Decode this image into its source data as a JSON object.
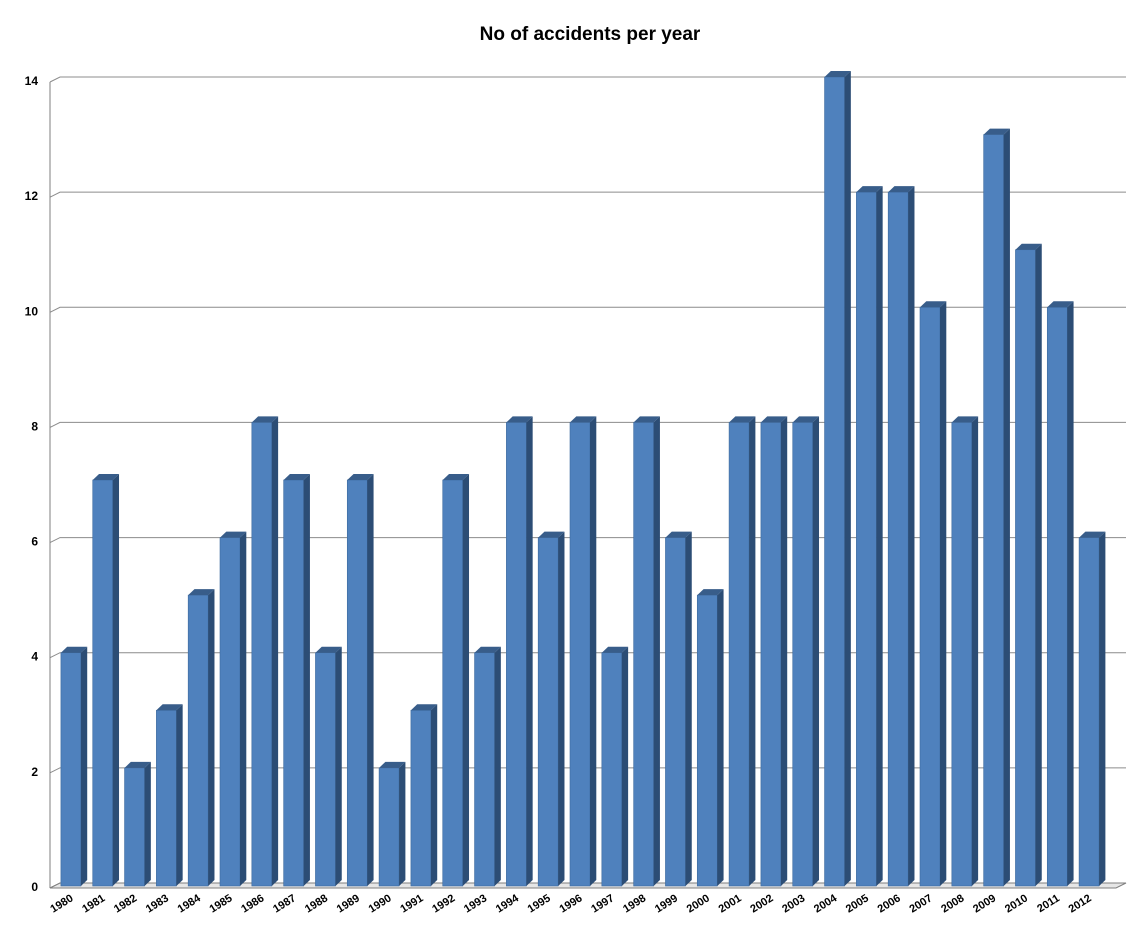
{
  "colors": {
    "bar_front": "#4f81bd",
    "bar_side": "#2c4d75",
    "bar_top": "#385d8a",
    "gridline": "#8c8c8c",
    "wall": "#ffffff",
    "floor": "#e6e6e6"
  },
  "chart_data": {
    "type": "bar",
    "style": "3d-column",
    "title": "No of accidents per year",
    "xlabel": "",
    "ylabel": "",
    "ylim": [
      0,
      14
    ],
    "yticks": [
      0,
      2,
      4,
      6,
      8,
      10,
      12,
      14
    ],
    "grid": true,
    "legend": "none",
    "categories": [
      "1980",
      "1981",
      "1982",
      "1983",
      "1984",
      "1985",
      "1986",
      "1987",
      "1988",
      "1989",
      "1990",
      "1991",
      "1992",
      "1993",
      "1994",
      "1995",
      "1996",
      "1997",
      "1998",
      "1999",
      "2000",
      "2001",
      "2002",
      "2003",
      "2004",
      "2005",
      "2006",
      "2007",
      "2008",
      "2009",
      "2010",
      "2011",
      "2012"
    ],
    "values": [
      4,
      7,
      2,
      3,
      5,
      6,
      8,
      7,
      4,
      7,
      2,
      3,
      7,
      4,
      8,
      6,
      8,
      4,
      8,
      6,
      5,
      8,
      8,
      8,
      14,
      12,
      12,
      10,
      8,
      13,
      11,
      10,
      6
    ]
  }
}
